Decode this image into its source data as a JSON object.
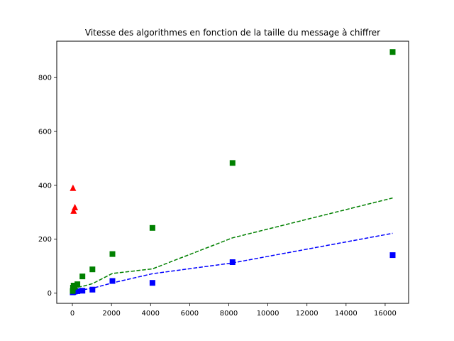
{
  "chart_data": {
    "type": "scatter",
    "title": "Vitesse des algorithmes en fonction de la taille du message à chiffrer",
    "xlabel": "",
    "ylabel": "",
    "xlim": [
      -800,
      17200
    ],
    "ylim": [
      -38,
      935
    ],
    "x_ticks": [
      0,
      2000,
      4000,
      6000,
      8000,
      10000,
      12000,
      14000,
      16000
    ],
    "x_tick_labels": [
      "0",
      "2000",
      "4000",
      "6000",
      "8000",
      "10000",
      "12000",
      "14000",
      "16000"
    ],
    "y_ticks": [
      0,
      200,
      400,
      600,
      800
    ],
    "y_tick_labels": [
      "0",
      "200",
      "400",
      "600",
      "800"
    ],
    "grid": false,
    "series": [
      {
        "marker": "square",
        "color": "#0000ff",
        "x": [
          16,
          32,
          64,
          128,
          256,
          512,
          1024,
          2048,
          4096,
          8192,
          16384
        ],
        "y": [
          3,
          4,
          5,
          6,
          7,
          9,
          13,
          45,
          38,
          115,
          141
        ]
      },
      {
        "marker": "square",
        "color": "#008000",
        "x": [
          16,
          32,
          64,
          128,
          256,
          512,
          1024,
          2048,
          4096,
          8192,
          16384
        ],
        "y": [
          8,
          20,
          28,
          24,
          33,
          62,
          88,
          145,
          242,
          483,
          895
        ]
      },
      {
        "marker": "triangle",
        "color": "#ff0000",
        "x": [
          32,
          64,
          128
        ],
        "y": [
          390,
          305,
          318
        ]
      },
      {
        "line_style": "dashed",
        "color": "#0000ff",
        "x": [
          16,
          128,
          512,
          1024,
          2048,
          4096,
          8192,
          16384
        ],
        "y": [
          2,
          6,
          12,
          18,
          38,
          72,
          112,
          222
        ]
      },
      {
        "line_style": "dashed",
        "color": "#008000",
        "x": [
          16,
          128,
          512,
          1024,
          2048,
          4096,
          8192,
          16384
        ],
        "y": [
          15,
          20,
          25,
          35,
          73,
          90,
          205,
          353
        ]
      }
    ]
  }
}
